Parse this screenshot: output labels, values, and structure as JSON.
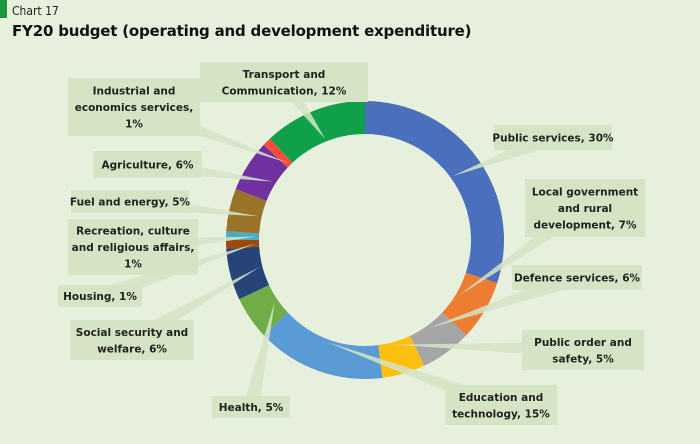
{
  "header": {
    "chart_number": "Chart 17",
    "title": "FY20 budget (operating and development expenditure)"
  },
  "colors": {
    "background": "#e7f0dc",
    "callout": "#d4e4c4"
  },
  "chart_data": {
    "type": "pie",
    "title": "FY20 budget (operating and development expenditure)",
    "subtitle": "Chart 17",
    "donut": true,
    "slices": [
      {
        "label": [
          "Public services, 30%"
        ],
        "value": 30,
        "color": "#4a70bd"
      },
      {
        "label": [
          "Local government",
          "and rural",
          "development, 7%"
        ],
        "value": 7,
        "color": "#ed7d31"
      },
      {
        "label": [
          "Defence services, 6%"
        ],
        "value": 6,
        "color": "#a5a5a5"
      },
      {
        "label": [
          "Public order and",
          "safety, 5%"
        ],
        "value": 5,
        "color": "#fdc010"
      },
      {
        "label": [
          "Education and",
          "technology, 15%"
        ],
        "value": 15,
        "color": "#5b9bd5"
      },
      {
        "label": [
          "Health, 5%"
        ],
        "value": 5,
        "color": "#70ad47"
      },
      {
        "label": [
          "Social security and",
          "welfare, 6%"
        ],
        "value": 6,
        "color": "#264478"
      },
      {
        "label": [
          "Housing, 1%"
        ],
        "value": 1,
        "color": "#9e480e"
      },
      {
        "label": [
          "Recreation, culture",
          "and religious affairs,",
          "1%"
        ],
        "value": 1,
        "color": "#4bacc6"
      },
      {
        "label": [
          "Fuel and energy, 5%"
        ],
        "value": 5,
        "color": "#997327"
      },
      {
        "label": [
          "Agriculture, 6%"
        ],
        "value": 6,
        "color": "#7030a0"
      },
      {
        "label": [
          "Industrial and",
          "economics services,",
          "1%"
        ],
        "value": 1,
        "color": "#ff4b3a"
      },
      {
        "label": [
          "Transport and",
          "Communication, 12%"
        ],
        "value": 12,
        "color": "#11a04a"
      }
    ]
  }
}
